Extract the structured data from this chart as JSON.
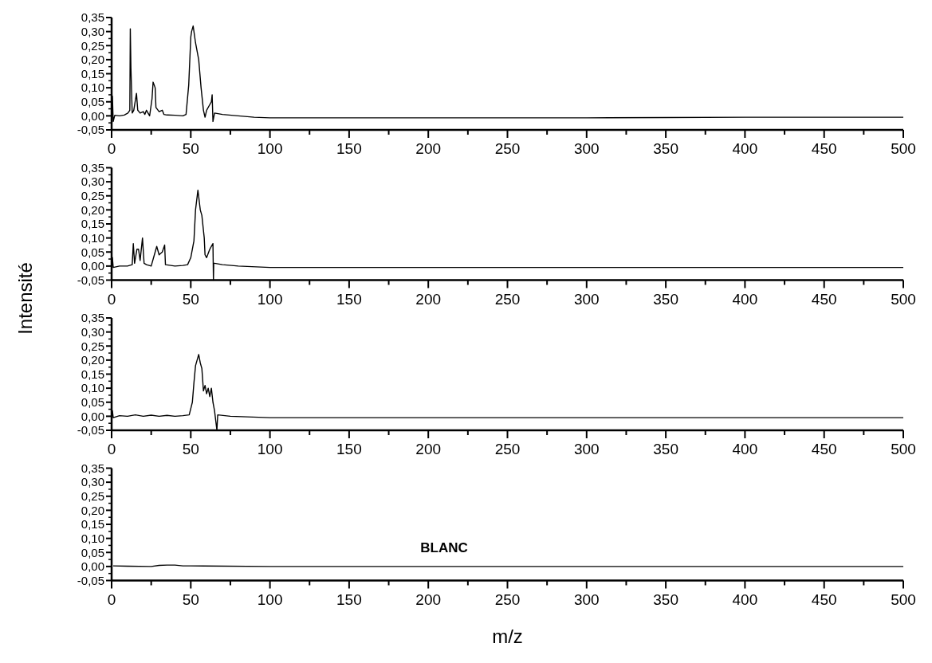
{
  "chart_data": [
    {
      "type": "line",
      "xlim": [
        0,
        500
      ],
      "ylim": [
        -0.05,
        0.35
      ],
      "xticks": [
        0,
        {
          "value": 25,
          "label": null
        },
        50,
        {
          "value": 75,
          "label": null
        },
        100,
        {
          "value": 125,
          "label": null
        },
        150,
        {
          "value": 175,
          "label": null
        },
        200,
        {
          "value": 225,
          "label": null
        },
        250,
        {
          "value": 275,
          "label": null
        },
        300,
        {
          "value": 325,
          "label": null
        },
        350,
        {
          "value": 375,
          "label": null
        },
        400,
        {
          "value": 425,
          "label": null
        },
        450,
        {
          "value": 475,
          "label": null
        },
        500
      ],
      "yticks": [
        {
          "value": -0.05,
          "label": "-0,05"
        },
        {
          "value": 0,
          "label": "0,00"
        },
        {
          "value": 0.05,
          "label": "0,05"
        },
        {
          "value": 0.1,
          "label": "0,10"
        },
        {
          "value": 0.15,
          "label": "0,15"
        },
        {
          "value": 0.2,
          "label": "0,20"
        },
        {
          "value": 0.25,
          "label": "0,25"
        },
        {
          "value": 0.3,
          "label": "0,30"
        },
        {
          "value": 0.35,
          "label": "0,35"
        }
      ],
      "series": [
        {
          "color": "#000000",
          "x": [
            0,
            0.5,
            1,
            2,
            5,
            8,
            10.3,
            11.5,
            11.8,
            12.2,
            13,
            14,
            15.7,
            16.5,
            18,
            20,
            21,
            22,
            24,
            25.5,
            26.2,
            27.5,
            28,
            30,
            32,
            33,
            35,
            40,
            45,
            47,
            48.7,
            50,
            50.5,
            51.5,
            53,
            55,
            56.5,
            58,
            59,
            60,
            62,
            63,
            63.5,
            64,
            65,
            70,
            80,
            90,
            100,
            200,
            300,
            350,
            400,
            450,
            500
          ],
          "values": [
            0.005,
            0.07,
            -0.02,
            0.002,
            0.0,
            0.003,
            0.01,
            0.02,
            0.31,
            0.17,
            0.01,
            0.02,
            0.08,
            0.02,
            0.01,
            0.015,
            0.005,
            0.02,
            0.0,
            0.06,
            0.12,
            0.1,
            0.03,
            0.015,
            0.02,
            0.005,
            0.003,
            0.002,
            0.0,
            0.005,
            0.11,
            0.28,
            0.3,
            0.32,
            0.26,
            0.2,
            0.1,
            0.02,
            -0.005,
            0.02,
            0.04,
            0.05,
            0.075,
            -0.02,
            0.01,
            0.005,
            0.0,
            -0.005,
            -0.007,
            -0.007,
            -0.007,
            -0.006,
            -0.005,
            -0.005,
            -0.005
          ]
        }
      ]
    },
    {
      "type": "line",
      "ylabel": "Intensité",
      "xlim": [
        0,
        500
      ],
      "ylim": [
        -0.05,
        0.35
      ],
      "xticks": [
        0,
        {
          "value": 25,
          "label": null
        },
        50,
        {
          "value": 75,
          "label": null
        },
        100,
        {
          "value": 125,
          "label": null
        },
        150,
        {
          "value": 175,
          "label": null
        },
        200,
        {
          "value": 225,
          "label": null
        },
        250,
        {
          "value": 275,
          "label": null
        },
        300,
        {
          "value": 325,
          "label": null
        },
        350,
        {
          "value": 375,
          "label": null
        },
        400,
        {
          "value": 425,
          "label": null
        },
        450,
        {
          "value": 475,
          "label": null
        },
        500
      ],
      "yticks": [
        {
          "value": -0.05,
          "label": "-0,05"
        },
        {
          "value": 0,
          "label": "0,00"
        },
        {
          "value": 0.05,
          "label": "0,05"
        },
        {
          "value": 0.1,
          "label": "0,10"
        },
        {
          "value": 0.15,
          "label": "0,15"
        },
        {
          "value": 0.2,
          "label": "0,20"
        },
        {
          "value": 0.25,
          "label": "0,25"
        },
        {
          "value": 0.3,
          "label": "0,30"
        },
        {
          "value": 0.35,
          "label": "0,35"
        }
      ],
      "series": [
        {
          "color": "#000000",
          "x": [
            0,
            0.5,
            1,
            5,
            10,
            13,
            13.7,
            14.5,
            16,
            17,
            18,
            19.5,
            20.5,
            22,
            25,
            27,
            28.5,
            30,
            32,
            33.5,
            34,
            40,
            45,
            48,
            50,
            52,
            53,
            54.5,
            56,
            57,
            58.5,
            59,
            60,
            62,
            64,
            64.3,
            64.5,
            65,
            70,
            80,
            100,
            200,
            300,
            400,
            500
          ],
          "values": [
            0.0,
            0.03,
            -0.005,
            0.0,
            0.0,
            0.005,
            0.08,
            0.01,
            0.06,
            0.06,
            0.02,
            0.1,
            0.01,
            0.005,
            0.0,
            0.04,
            0.07,
            0.04,
            0.05,
            0.075,
            0.005,
            0.0,
            0.002,
            0.005,
            0.03,
            0.09,
            0.2,
            0.27,
            0.2,
            0.18,
            0.1,
            0.04,
            0.03,
            0.06,
            0.08,
            -0.05,
            0.01,
            0.01,
            0.005,
            0.0,
            -0.005,
            -0.005,
            -0.005,
            -0.005,
            -0.005
          ]
        }
      ]
    },
    {
      "type": "line",
      "xlim": [
        0,
        500
      ],
      "ylim": [
        -0.05,
        0.35
      ],
      "xticks": [
        0,
        {
          "value": 25,
          "label": null
        },
        50,
        {
          "value": 75,
          "label": null
        },
        100,
        {
          "value": 125,
          "label": null
        },
        150,
        {
          "value": 175,
          "label": null
        },
        200,
        {
          "value": 225,
          "label": null
        },
        250,
        {
          "value": 275,
          "label": null
        },
        300,
        {
          "value": 325,
          "label": null
        },
        350,
        {
          "value": 375,
          "label": null
        },
        400,
        {
          "value": 425,
          "label": null
        },
        450,
        {
          "value": 475,
          "label": null
        },
        500
      ],
      "yticks": [
        {
          "value": -0.05,
          "label": "-0,05"
        },
        {
          "value": 0,
          "label": "0,00"
        },
        {
          "value": 0.05,
          "label": "0,05"
        },
        {
          "value": 0.1,
          "label": "0,10"
        },
        {
          "value": 0.15,
          "label": "0,15"
        },
        {
          "value": 0.2,
          "label": "0,20"
        },
        {
          "value": 0.25,
          "label": "0,25"
        },
        {
          "value": 0.3,
          "label": "0,30"
        },
        {
          "value": 0.35,
          "label": "0,35"
        }
      ],
      "series": [
        {
          "color": "#000000",
          "x": [
            0,
            0.5,
            1,
            5,
            10,
            15,
            20,
            25,
            30,
            35,
            40,
            45,
            49,
            51,
            52,
            53,
            55,
            56,
            57,
            58,
            59,
            60,
            61,
            62,
            63,
            64,
            65,
            66.5,
            67,
            75,
            100,
            200,
            300,
            400,
            500
          ],
          "values": [
            0.0,
            0.02,
            -0.005,
            0.002,
            0.0,
            0.005,
            0.0,
            0.004,
            0.0,
            0.003,
            0.0,
            0.002,
            0.005,
            0.05,
            0.12,
            0.18,
            0.22,
            0.19,
            0.17,
            0.09,
            0.11,
            0.08,
            0.1,
            0.07,
            0.1,
            0.05,
            0.02,
            -0.05,
            0.005,
            0.0,
            -0.005,
            -0.005,
            -0.005,
            -0.005,
            -0.005
          ]
        }
      ]
    },
    {
      "type": "line",
      "xlabel": "m/z",
      "annotations": [
        "BLANC"
      ],
      "xlim": [
        0,
        500
      ],
      "ylim": [
        -0.05,
        0.35
      ],
      "xticks": [
        0,
        {
          "value": 25,
          "label": null
        },
        50,
        {
          "value": 75,
          "label": null
        },
        100,
        {
          "value": 125,
          "label": null
        },
        150,
        {
          "value": 175,
          "label": null
        },
        200,
        {
          "value": 225,
          "label": null
        },
        250,
        {
          "value": 275,
          "label": null
        },
        300,
        {
          "value": 325,
          "label": null
        },
        350,
        {
          "value": 375,
          "label": null
        },
        400,
        {
          "value": 425,
          "label": null
        },
        450,
        {
          "value": 475,
          "label": null
        },
        500
      ],
      "yticks": [
        {
          "value": -0.05,
          "label": "-0,05"
        },
        {
          "value": 0,
          "label": "0,00"
        },
        {
          "value": 0.05,
          "label": "0,05"
        },
        {
          "value": 0.1,
          "label": "0,10"
        },
        {
          "value": 0.15,
          "label": "0,15"
        },
        {
          "value": 0.2,
          "label": "0,20"
        },
        {
          "value": 0.25,
          "label": "0,25"
        },
        {
          "value": 0.3,
          "label": "0,30"
        },
        {
          "value": 0.35,
          "label": "0,35"
        }
      ],
      "series": [
        {
          "color": "#000000",
          "x": [
            1,
            10,
            25,
            30,
            35,
            40,
            45,
            50,
            100,
            500
          ],
          "values": [
            0.002,
            0.001,
            0.0,
            0.004,
            0.005,
            0.005,
            0.002,
            0.002,
            0.0,
            0.0
          ]
        }
      ]
    }
  ]
}
